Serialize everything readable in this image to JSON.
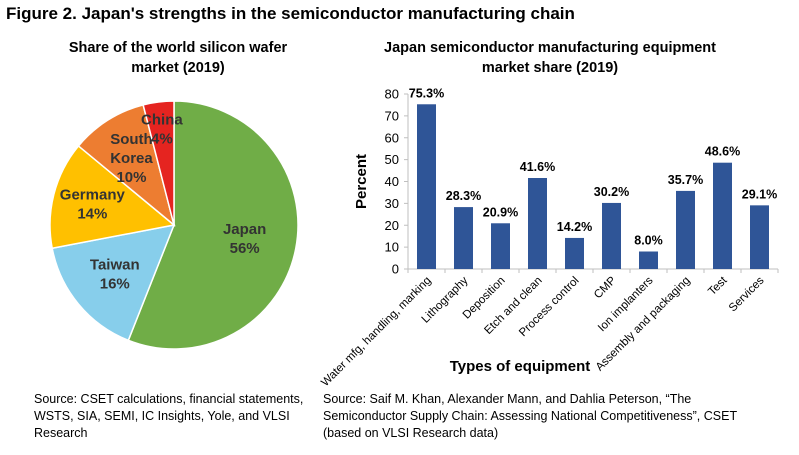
{
  "figure_title": "Figure 2. Japan's strengths in the semiconductor manufacturing chain",
  "colors": {
    "japan": "#70AD47",
    "taiwan": "#87CEEB",
    "germany": "#FFC000",
    "south_korea": "#ED7D31",
    "china": "#E52420",
    "bar": "#2F5597",
    "slice_border": "#ffffff",
    "axis": "#BFBFBF"
  },
  "chart_data": [
    {
      "type": "pie",
      "title_lines": [
        "Share of the world silicon wafer",
        "market (2019)"
      ],
      "slices": [
        {
          "label_lines": [
            "Japan",
            "56%"
          ],
          "value": 56,
          "color_key": "japan"
        },
        {
          "label_lines": [
            "Taiwan",
            "16%"
          ],
          "value": 16,
          "color_key": "taiwan"
        },
        {
          "label_lines": [
            "Germany",
            "14%"
          ],
          "value": 14,
          "color_key": "germany"
        },
        {
          "label_lines": [
            "South",
            "Korea",
            "10%"
          ],
          "value": 10,
          "color_key": "south_korea"
        },
        {
          "label_lines": [
            "China",
            "4%"
          ],
          "value": 4,
          "color_key": "china"
        }
      ],
      "legend": false
    },
    {
      "type": "bar",
      "title_lines": [
        "Japan semiconductor manufacturing equipment",
        "market share (2019)"
      ],
      "categories": [
        "Water mfg, handling, marking",
        "Lithography",
        "Deposition",
        "Etch and clean",
        "Process control",
        "CMP",
        "Ion implanters",
        "Assembly and packaging",
        "Test",
        "Services"
      ],
      "values": [
        75.3,
        28.3,
        20.9,
        41.6,
        14.2,
        30.2,
        8.0,
        35.7,
        48.6,
        29.1
      ],
      "data_labels": [
        "75.3%",
        "28.3%",
        "20.9%",
        "41.6%",
        "14.2%",
        "30.2%",
        "8.0%",
        "35.7%",
        "48.6%",
        "29.1%"
      ],
      "xlabel": "Types of equipment",
      "ylabel": "Percent",
      "ylim": [
        0,
        80
      ],
      "yticks": [
        0,
        10,
        20,
        30,
        40,
        50,
        60,
        70,
        80
      ],
      "grid": false,
      "legend": false
    }
  ],
  "sources": {
    "left": "Source: CSET calculations, financial statements, WSTS, SIA, SEMI, IC Insights, Yole, and VLSI Research",
    "right": "Source: Saif M. Khan, Alexander Mann, and Dahlia Peterson, “The Semiconductor Supply Chain: Assessing National Competitiveness”, CSET (based on VLSI Research data)"
  }
}
